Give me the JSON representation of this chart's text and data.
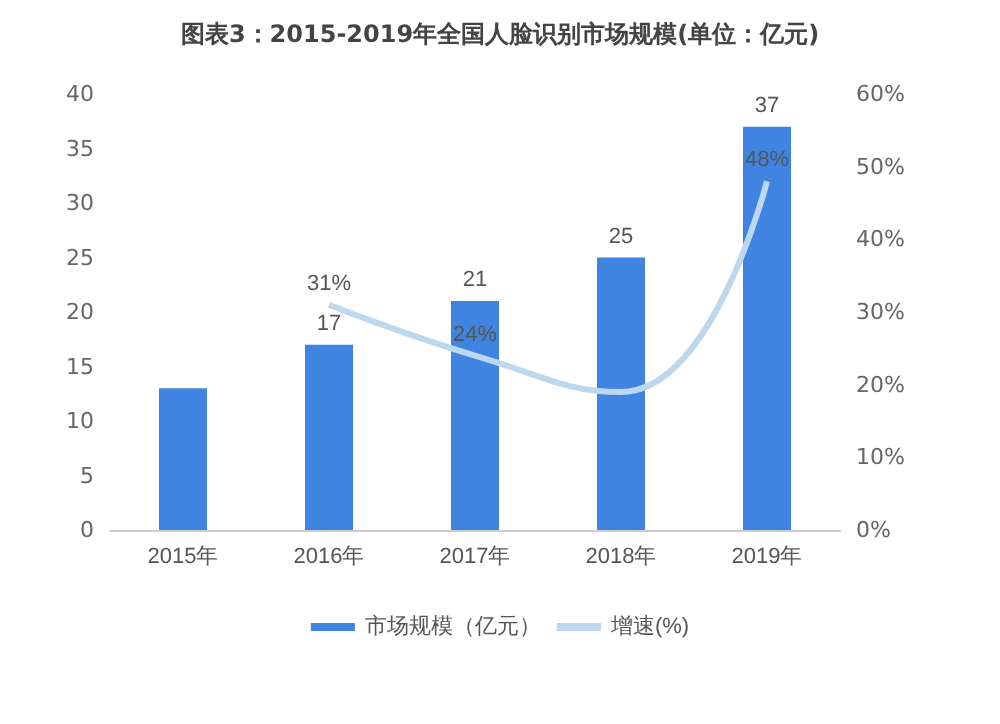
{
  "chart_data": {
    "type": "bar",
    "title": "图表3：2015-2019年全国人脸识别市场规模(单位：亿元)",
    "categories": [
      "2015年",
      "2016年",
      "2017年",
      "2018年",
      "2019年"
    ],
    "series": [
      {
        "name": "市场规模（亿元）",
        "color": "#3f84e0",
        "values": [
          13,
          17,
          21,
          25,
          37
        ],
        "value_labels": [
          null,
          "17",
          "21",
          "25",
          "37"
        ]
      },
      {
        "name": "增速(%)",
        "type": "line",
        "axis": "y2",
        "color": "#bdd7ee",
        "values": [
          null,
          31,
          24,
          19,
          48
        ],
        "value_labels": [
          null,
          "31%",
          "24%",
          null,
          "48%"
        ]
      }
    ],
    "ylim": [
      0,
      40
    ],
    "yticks": [
      0,
      5,
      10,
      15,
      20,
      25,
      30,
      35,
      40
    ],
    "y2lim": [
      0,
      60
    ],
    "y2ticks": [
      {
        "value": 0,
        "label": "0%"
      },
      {
        "value": 10,
        "label": "10%"
      },
      {
        "value": 20,
        "label": "20%"
      },
      {
        "value": 30,
        "label": "30%"
      },
      {
        "value": 40,
        "label": "40%"
      },
      {
        "value": 50,
        "label": "50%"
      },
      {
        "value": 60,
        "label": "60%"
      }
    ],
    "grid": false,
    "legend": "bottom",
    "marker": "none",
    "line_style": "solid"
  }
}
